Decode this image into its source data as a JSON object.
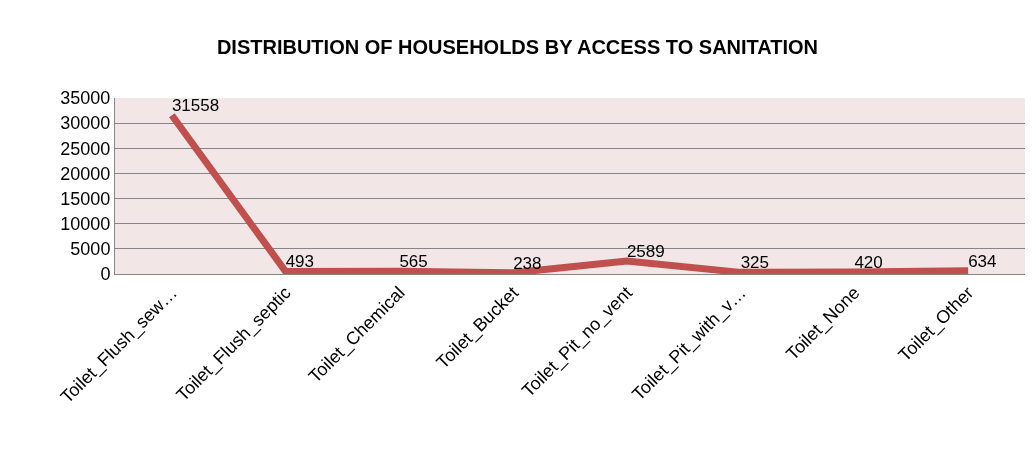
{
  "chart_data": {
    "type": "line",
    "title": "DISTRIBUTION OF HOUSEHOLDS BY ACCESS TO SANITATION",
    "categories": [
      "Toilet_Flush_sew…",
      "Toilet_Flush_septic",
      "Toilet_Chemical",
      "Toilet_Bucket",
      "Toilet_Pit_no_vent",
      "Toilet_Pit_with_v…",
      "Toilet_None",
      "Toilet_Other"
    ],
    "values": [
      31558,
      493,
      565,
      238,
      2589,
      325,
      420,
      634
    ],
    "color": "#c0504d",
    "ylim": [
      0,
      35000
    ],
    "yticks": [
      0,
      5000,
      10000,
      15000,
      20000,
      25000,
      30000,
      35000
    ],
    "grid": "y",
    "legend": false,
    "marker": "none",
    "line_style": "solid",
    "data_labels": true
  }
}
